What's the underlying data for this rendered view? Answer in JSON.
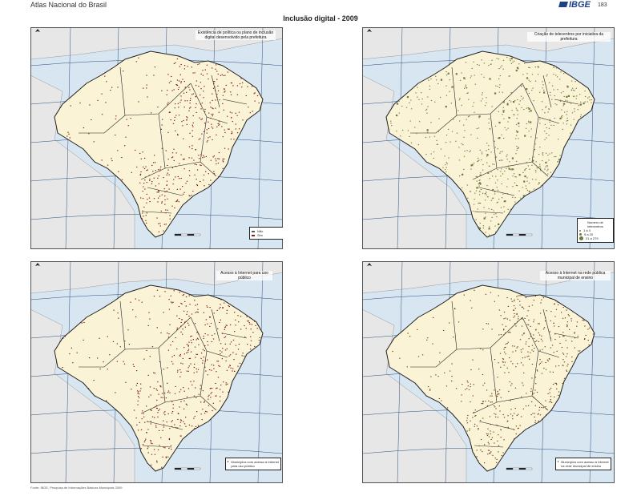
{
  "header": {
    "atlas_title": "Atlas Nacional do Brasil",
    "publisher": "IBGE",
    "page_number": "183"
  },
  "main_title": "Inclusão digital - 2009",
  "maps": [
    {
      "title": "Existência de política ou plano de inclusão digital desenvolvido pela prefeitura",
      "legend": {
        "heading": "",
        "items": [
          {
            "label": "Não",
            "color": "#5a5a5a"
          },
          {
            "label": "Sim",
            "color": "#8b1a1a"
          }
        ]
      },
      "dot_color": "#7a1010"
    },
    {
      "title": "Criação de telecentros por iniciativa da prefeitura",
      "legend": {
        "heading": "Número de telecentros",
        "items": [
          {
            "label": "1 a 4",
            "color": "#6e7a3c"
          },
          {
            "label": "5 a 20",
            "color": "#6e7a3c"
          },
          {
            "label": "21 a 279",
            "color": "#6e7a3c"
          }
        ]
      },
      "dot_color": "#6e7a3c"
    },
    {
      "title": "Acesso à Internet para uso público",
      "legend": {
        "heading": "",
        "items": [
          {
            "label": "Municípios com acesso à Internet para uso público",
            "color": "#7a1010"
          }
        ]
      },
      "dot_color": "#7a1010"
    },
    {
      "title": "Acesso à Internet na rede pública municipal de ensino",
      "legend": {
        "heading": "",
        "items": [
          {
            "label": "Municípios com acesso à Internet na rede municipal de ensino",
            "color": "#6b3a16"
          }
        ]
      },
      "dot_color": "#6b3a16"
    }
  ],
  "source_note": "Fonte: IBGE, Pesquisa de Informações Básicas Municipais 2009.",
  "colors": {
    "ocean": "#d8e6f2",
    "land_brazil": "#fbf3d6",
    "land_neighbor": "#e7e7e7",
    "border": "#222222",
    "grid": "#2b4f7a"
  }
}
